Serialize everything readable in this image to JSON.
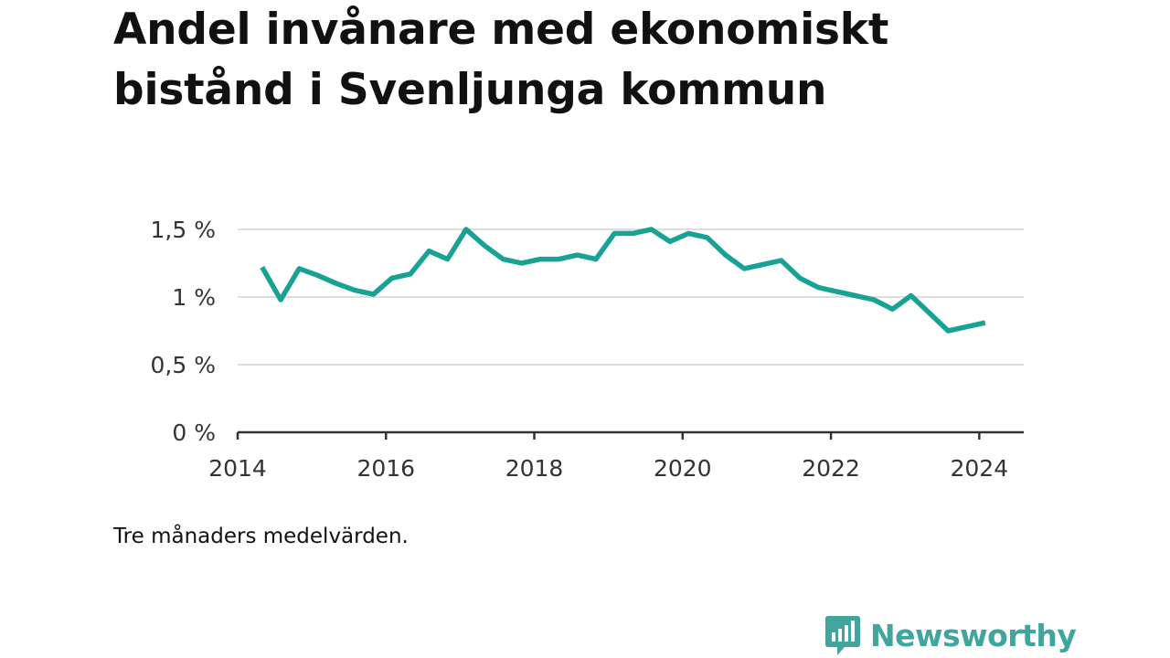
{
  "title": "Andel invånare med ekonomiskt bistånd i Svenljunga kommun",
  "note": "Tre månaders medelvärden.",
  "brand": {
    "name": "Newsworthy",
    "icon": "newsworthy-logo-icon",
    "color": "#3fa59d"
  },
  "chart_data": {
    "type": "line",
    "title": "Andel invånare med ekonomiskt bistånd i Svenljunga kommun",
    "xlabel": "",
    "ylabel": "",
    "x_ticks": [
      {
        "value": 2014,
        "label": "2014"
      },
      {
        "value": 2016,
        "label": "2016"
      },
      {
        "value": 2018,
        "label": "2018"
      },
      {
        "value": 2020,
        "label": "2020"
      },
      {
        "value": 2022,
        "label": "2022"
      },
      {
        "value": 2024,
        "label": "2024"
      }
    ],
    "y_ticks": [
      {
        "value": 0,
        "label": "0 %"
      },
      {
        "value": 0.5,
        "label": "0,5 %"
      },
      {
        "value": 1,
        "label": "1 %"
      },
      {
        "value": 1.5,
        "label": "1,5 %"
      }
    ],
    "xlim": [
      2014,
      2024.6
    ],
    "ylim": [
      0,
      1.5
    ],
    "grid": true,
    "line_color": "#18a296",
    "series": [
      {
        "points": [
          {
            "x": 2014.33,
            "y": 1.22
          },
          {
            "x": 2014.58,
            "y": 0.98
          },
          {
            "x": 2014.83,
            "y": 1.21
          },
          {
            "x": 2015.08,
            "y": 1.16
          },
          {
            "x": 2015.33,
            "y": 1.1
          },
          {
            "x": 2015.58,
            "y": 1.05
          },
          {
            "x": 2015.83,
            "y": 1.02
          },
          {
            "x": 2016.08,
            "y": 1.14
          },
          {
            "x": 2016.33,
            "y": 1.17
          },
          {
            "x": 2016.58,
            "y": 1.34
          },
          {
            "x": 2016.83,
            "y": 1.28
          },
          {
            "x": 2017.08,
            "y": 1.5
          },
          {
            "x": 2017.33,
            "y": 1.38
          },
          {
            "x": 2017.58,
            "y": 1.28
          },
          {
            "x": 2017.83,
            "y": 1.25
          },
          {
            "x": 2018.08,
            "y": 1.28
          },
          {
            "x": 2018.33,
            "y": 1.28
          },
          {
            "x": 2018.58,
            "y": 1.31
          },
          {
            "x": 2018.83,
            "y": 1.28
          },
          {
            "x": 2019.08,
            "y": 1.47
          },
          {
            "x": 2019.33,
            "y": 1.47
          },
          {
            "x": 2019.58,
            "y": 1.5
          },
          {
            "x": 2019.83,
            "y": 1.41
          },
          {
            "x": 2020.08,
            "y": 1.47
          },
          {
            "x": 2020.33,
            "y": 1.44
          },
          {
            "x": 2020.58,
            "y": 1.31
          },
          {
            "x": 2020.83,
            "y": 1.21
          },
          {
            "x": 2021.08,
            "y": 1.24
          },
          {
            "x": 2021.33,
            "y": 1.27
          },
          {
            "x": 2021.58,
            "y": 1.14
          },
          {
            "x": 2021.83,
            "y": 1.07
          },
          {
            "x": 2022.08,
            "y": 1.04
          },
          {
            "x": 2022.33,
            "y": 1.01
          },
          {
            "x": 2022.58,
            "y": 0.98
          },
          {
            "x": 2022.83,
            "y": 0.91
          },
          {
            "x": 2023.08,
            "y": 1.01
          },
          {
            "x": 2023.33,
            "y": 0.88
          },
          {
            "x": 2023.58,
            "y": 0.75
          },
          {
            "x": 2023.83,
            "y": 0.78
          },
          {
            "x": 2024.08,
            "y": 0.81
          }
        ]
      }
    ]
  }
}
